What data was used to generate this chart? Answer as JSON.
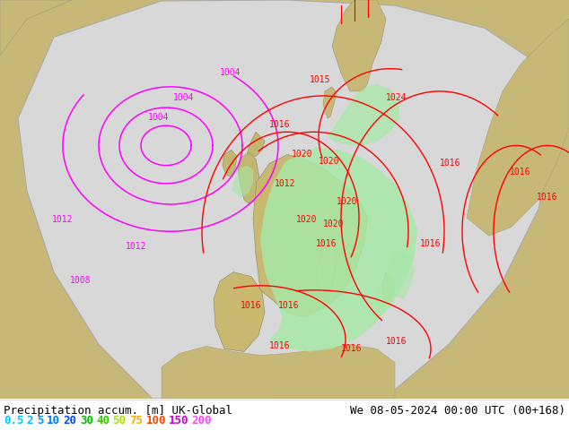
{
  "title_left": "Precipitation accum. [m] UK-Global",
  "title_right": "We 08-05-2024 00:00 UTC (00+168)",
  "legend_values": [
    "0.5",
    "2",
    "5",
    "10",
    "20",
    "30",
    "40",
    "50",
    "75",
    "100",
    "150",
    "200"
  ],
  "legend_colors": [
    "#00ccff",
    "#00bbff",
    "#0099ff",
    "#0077ff",
    "#0044ff",
    "#00bb00",
    "#33cc00",
    "#aadd00",
    "#ffaa00",
    "#ff4400",
    "#cc00cc",
    "#ff44ff"
  ],
  "bg_color": "#c8b878",
  "domain_color": "#d8d8d8",
  "precip_color": "#a8e8a8",
  "isobar_magenta": "#ff00ff",
  "isobar_red": "#ff0000",
  "coastline_color": "#888877",
  "fig_width": 6.34,
  "fig_height": 4.9,
  "dpi": 100,
  "font_size_labels": 9,
  "font_size_isobar": 7
}
